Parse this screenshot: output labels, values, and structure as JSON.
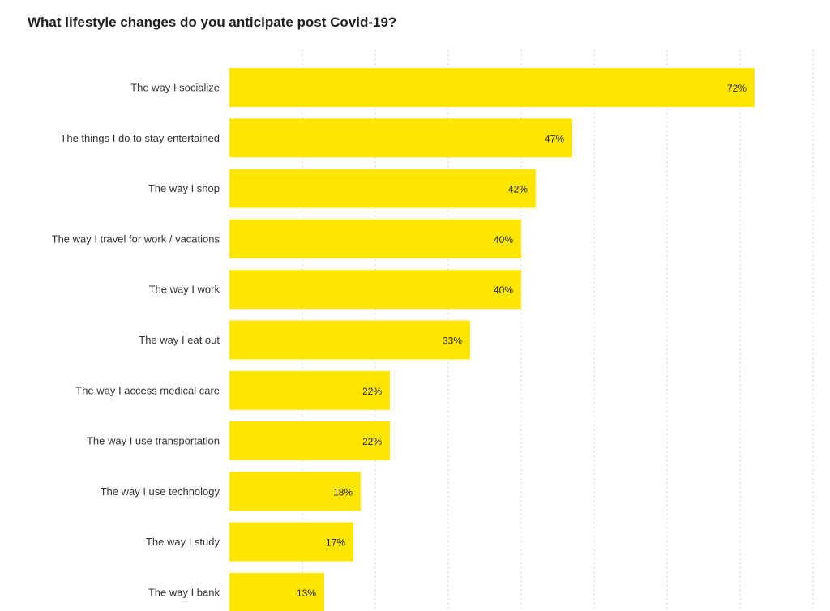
{
  "chart_data": {
    "type": "bar",
    "orientation": "horizontal",
    "title": "What lifestyle changes do you anticipate post Covid-19?",
    "categories": [
      "The way I socialize",
      "The things I do to stay entertained",
      "The way I shop",
      "The way I travel for work / vacations",
      "The way I work",
      "The way I eat out",
      "The way I access medical care",
      "The way I use transportation",
      "The way I use technology",
      "The way I study",
      "The way I bank"
    ],
    "values": [
      72,
      47,
      42,
      40,
      40,
      33,
      22,
      22,
      18,
      17,
      13
    ],
    "value_labels": [
      "72%",
      "47%",
      "42%",
      "40%",
      "40%",
      "33%",
      "22%",
      "22%",
      "18%",
      "17%",
      "13%"
    ],
    "xlim": [
      0,
      80
    ],
    "grid": true,
    "xlabel": "",
    "ylabel": "",
    "bar_color": "#FFE600"
  }
}
